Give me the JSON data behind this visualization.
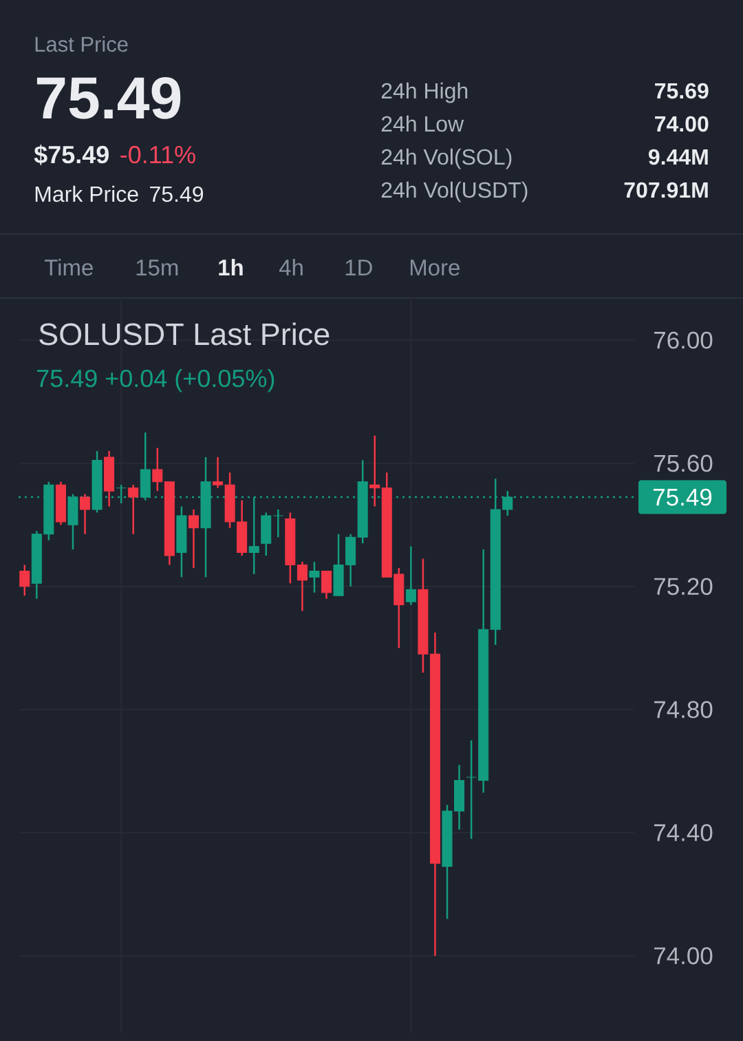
{
  "chart_data": [
    {
      "type": "other",
      "title": "Last Price",
      "annotations": [
        "75.49",
        "$75.49",
        "-0.11%",
        "Mark Price",
        "75.49",
        "24h High",
        "75.69",
        "24h Low",
        "74.00",
        "24h Vol(SOL)",
        "9.44M",
        "24h Vol(USDT)",
        "707.91M",
        "Time",
        "15m",
        "1h",
        "4h",
        "1D",
        "More"
      ]
    },
    {
      "type": "candlestick",
      "title": "SOLUSDT Last Price",
      "subtitle": "75.49 +0.04 (+0.05%)",
      "categories": [
        null,
        null,
        null,
        null,
        null,
        null,
        null,
        null,
        null,
        null,
        null,
        null,
        null,
        null,
        null,
        null,
        null,
        null,
        null,
        null,
        null,
        null,
        null,
        null,
        null,
        null,
        null,
        null,
        null,
        null,
        null,
        null,
        null,
        null,
        null,
        null,
        null,
        null,
        null,
        null,
        null,
        null,
        null,
        null,
        null,
        null,
        null,
        null,
        null,
        null,
        null
      ],
      "ohlc": [
        [
          75.25,
          75.27,
          75.17,
          75.2
        ],
        [
          75.21,
          75.38,
          75.16,
          75.37
        ],
        [
          75.37,
          75.54,
          75.35,
          75.53
        ],
        [
          75.53,
          75.54,
          75.4,
          75.41
        ],
        [
          75.4,
          75.5,
          75.32,
          75.49
        ],
        [
          75.49,
          75.5,
          75.37,
          75.45
        ],
        [
          75.45,
          75.64,
          75.44,
          75.61
        ],
        [
          75.62,
          75.64,
          75.46,
          75.51
        ],
        [
          75.52,
          75.53,
          75.47,
          75.52
        ],
        [
          75.52,
          75.53,
          75.37,
          75.49
        ],
        [
          75.49,
          75.7,
          75.48,
          75.58
        ],
        [
          75.58,
          75.65,
          75.51,
          75.54
        ],
        [
          75.54,
          75.54,
          75.27,
          75.3
        ],
        [
          75.31,
          75.46,
          75.23,
          75.43
        ],
        [
          75.43,
          75.45,
          75.26,
          75.39
        ],
        [
          75.39,
          75.62,
          75.23,
          75.54
        ],
        [
          75.54,
          75.62,
          75.52,
          75.53
        ],
        [
          75.53,
          75.57,
          75.39,
          75.41
        ],
        [
          75.41,
          75.48,
          75.3,
          75.31
        ],
        [
          75.31,
          75.49,
          75.24,
          75.33
        ],
        [
          75.34,
          75.44,
          75.3,
          75.43
        ],
        [
          75.43,
          75.45,
          75.36,
          75.43
        ],
        [
          75.42,
          75.44,
          75.21,
          75.27
        ],
        [
          75.27,
          75.28,
          75.12,
          75.22
        ],
        [
          75.23,
          75.28,
          75.18,
          75.25
        ],
        [
          75.25,
          75.25,
          75.16,
          75.18
        ],
        [
          75.17,
          75.37,
          75.17,
          75.27
        ],
        [
          75.27,
          75.37,
          75.2,
          75.36
        ],
        [
          75.36,
          75.61,
          75.34,
          75.54
        ],
        [
          75.53,
          75.69,
          75.46,
          75.52
        ],
        [
          75.52,
          75.57,
          75.23,
          75.23
        ],
        [
          75.24,
          75.26,
          75.0,
          75.14
        ],
        [
          75.15,
          75.33,
          75.14,
          75.19
        ],
        [
          75.19,
          75.29,
          74.92,
          74.98
        ],
        [
          74.98,
          75.05,
          74.0,
          74.3
        ],
        [
          74.29,
          74.49,
          74.12,
          74.47
        ],
        [
          74.47,
          74.62,
          74.41,
          74.57
        ],
        [
          74.58,
          74.7,
          74.38,
          74.58
        ],
        [
          74.57,
          75.32,
          74.53,
          75.06
        ],
        [
          75.06,
          75.55,
          75.01,
          75.45
        ],
        [
          75.45,
          75.51,
          75.43,
          75.49
        ],
        null,
        null,
        null,
        null,
        null,
        null,
        null,
        null,
        null,
        null
      ],
      "colors": [
        "#f23645",
        "#139d80",
        "#139d80",
        "#f23645",
        "#139d80",
        "#f23645",
        "#139d80",
        "#f23645",
        "#139d80",
        "#f23645",
        "#139d80",
        "#f23645",
        "#f23645",
        "#139d80",
        "#f23645",
        "#139d80",
        "#f23645",
        "#f23645",
        "#f23645",
        "#139d80",
        "#139d80",
        "#139d80",
        "#f23645",
        "#f23645",
        "#139d80",
        "#f23645",
        "#139d80",
        "#139d80",
        "#139d80",
        "#f23645",
        "#f23645",
        "#f23645",
        "#139d80",
        "#f23645",
        "#f23645",
        "#139d80",
        "#139d80",
        "#139d80",
        "#139d80",
        "#139d80",
        "#139d80",
        null,
        null,
        null,
        null,
        null,
        null,
        null,
        null,
        null,
        null
      ],
      "ylim": [
        73.75,
        76.13
      ],
      "yticks": [
        {
          "value": 74.0,
          "label": "74.00"
        },
        {
          "value": 74.4,
          "label": "74.40"
        },
        {
          "value": 74.8,
          "label": "74.80"
        },
        {
          "value": 75.2,
          "label": "75.20"
        },
        {
          "value": 75.6,
          "label": "75.60"
        },
        {
          "value": 76.0,
          "label": "76.00"
        }
      ],
      "grid": "y",
      "tick_labels": "y",
      "ref_lines": [
        {
          "axis": "y",
          "value": 75.49,
          "label": "75.49",
          "color": "#139d80",
          "line_style": "dotted"
        }
      ]
    }
  ]
}
